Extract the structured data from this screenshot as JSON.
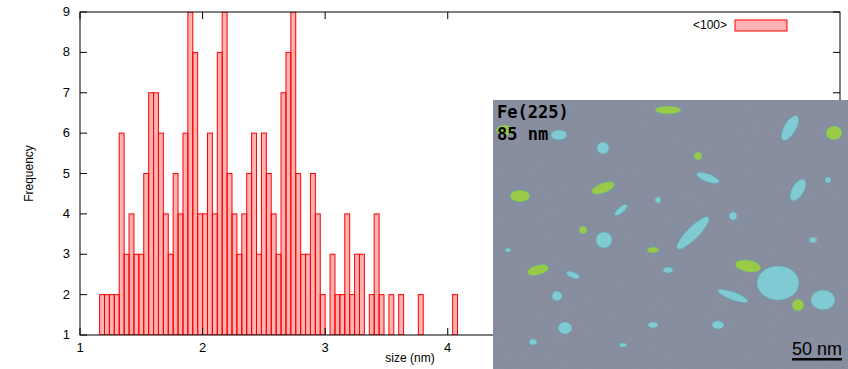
{
  "chart_data": {
    "type": "histogram",
    "x_label": "size (nm)",
    "y_label": "Frequency",
    "bins": [
      1.16,
      1.2,
      1.24,
      1.28,
      1.32,
      1.36,
      1.4,
      1.44,
      1.48,
      1.52,
      1.56,
      1.6,
      1.64,
      1.68,
      1.72,
      1.76,
      1.8,
      1.84,
      1.88,
      1.92,
      1.96,
      2,
      2.04,
      2.08,
      2.12,
      2.16,
      2.2,
      2.24,
      2.28,
      2.32,
      2.36,
      2.4,
      2.44,
      2.48,
      2.52,
      2.56,
      2.6,
      2.64,
      2.68,
      2.72,
      2.76,
      2.8,
      2.84,
      2.88,
      2.92,
      2.96,
      3,
      3.04,
      3.08,
      3.12,
      3.16,
      3.2,
      3.24,
      3.28,
      3.32,
      3.36,
      3.4,
      3.44,
      3.48,
      3.52,
      3.56,
      3.6,
      3.64,
      3.68,
      3.72,
      3.76,
      3.8,
      3.84,
      3.88,
      3.92,
      3.96,
      4,
      4.04,
      4.08
    ],
    "series": [
      {
        "name": "<100>",
        "color": "#ff0000",
        "values": [
          2,
          2,
          2,
          2,
          6,
          3,
          4,
          3,
          3,
          5,
          7,
          7,
          6,
          4,
          3,
          5,
          4,
          6,
          9,
          8,
          4,
          4,
          6,
          4,
          8,
          9,
          5,
          4,
          3,
          4,
          5,
          6,
          3,
          6,
          5,
          4,
          3,
          7,
          8,
          9,
          5,
          3,
          3,
          5,
          4,
          2,
          1,
          3,
          2,
          2,
          4,
          2,
          3,
          3,
          1,
          2,
          4,
          2,
          1,
          2,
          1,
          2,
          1,
          1,
          1,
          2,
          1,
          1,
          1,
          1,
          1,
          1,
          2
        ]
      }
    ],
    "xlim": [
      1,
      7.2
    ],
    "xticks": [
      1,
      2,
      3,
      4
    ],
    "ylim": [
      1,
      9
    ],
    "yticks": [
      1,
      2,
      3,
      4,
      5,
      6,
      7,
      8,
      9
    ],
    "legend": "top-right",
    "grid": false,
    "inset": {
      "title": "Fe(225)",
      "subtitle": "85 nm",
      "scale_bar": "50 nm"
    }
  }
}
